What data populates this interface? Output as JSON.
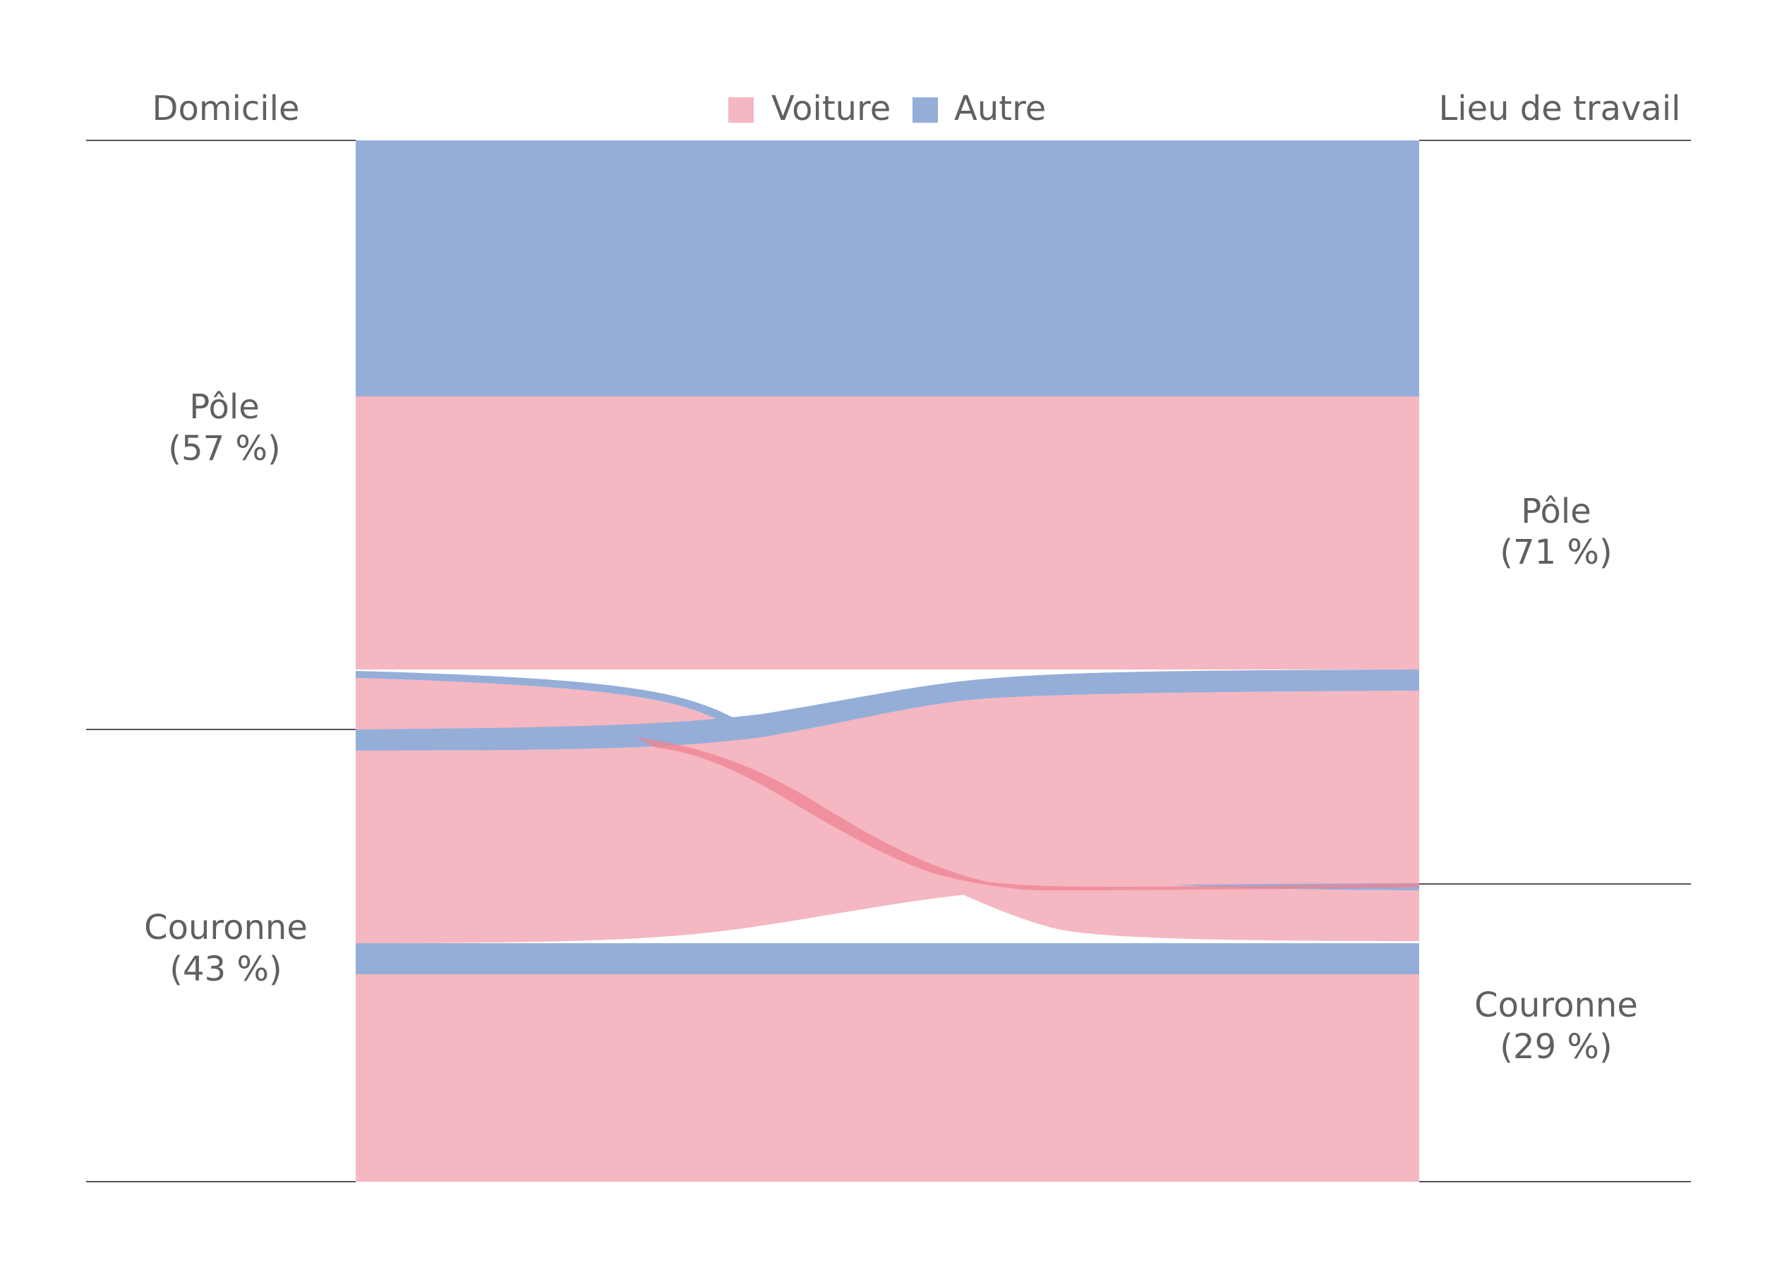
{
  "header": {
    "left": "Domicile",
    "right": "Lieu de travail"
  },
  "legend": [
    {
      "label": "Voiture",
      "color": "#f5b7c1"
    },
    {
      "label": "Autre",
      "color": "#95aed8"
    }
  ],
  "colors": {
    "voiture": "#f5b7c1",
    "autre": "#95aed8",
    "overlap": "#ed8392",
    "rule": "#555555",
    "text": "#606060"
  },
  "left_nodes": [
    {
      "name": "Pôle",
      "pct": "(57 %)"
    },
    {
      "name": "Couronne",
      "pct": "(43 %)"
    }
  ],
  "right_nodes": [
    {
      "name": "Pôle",
      "pct": "(71 %)"
    },
    {
      "name": "Couronne",
      "pct": "(29 %)"
    }
  ]
}
